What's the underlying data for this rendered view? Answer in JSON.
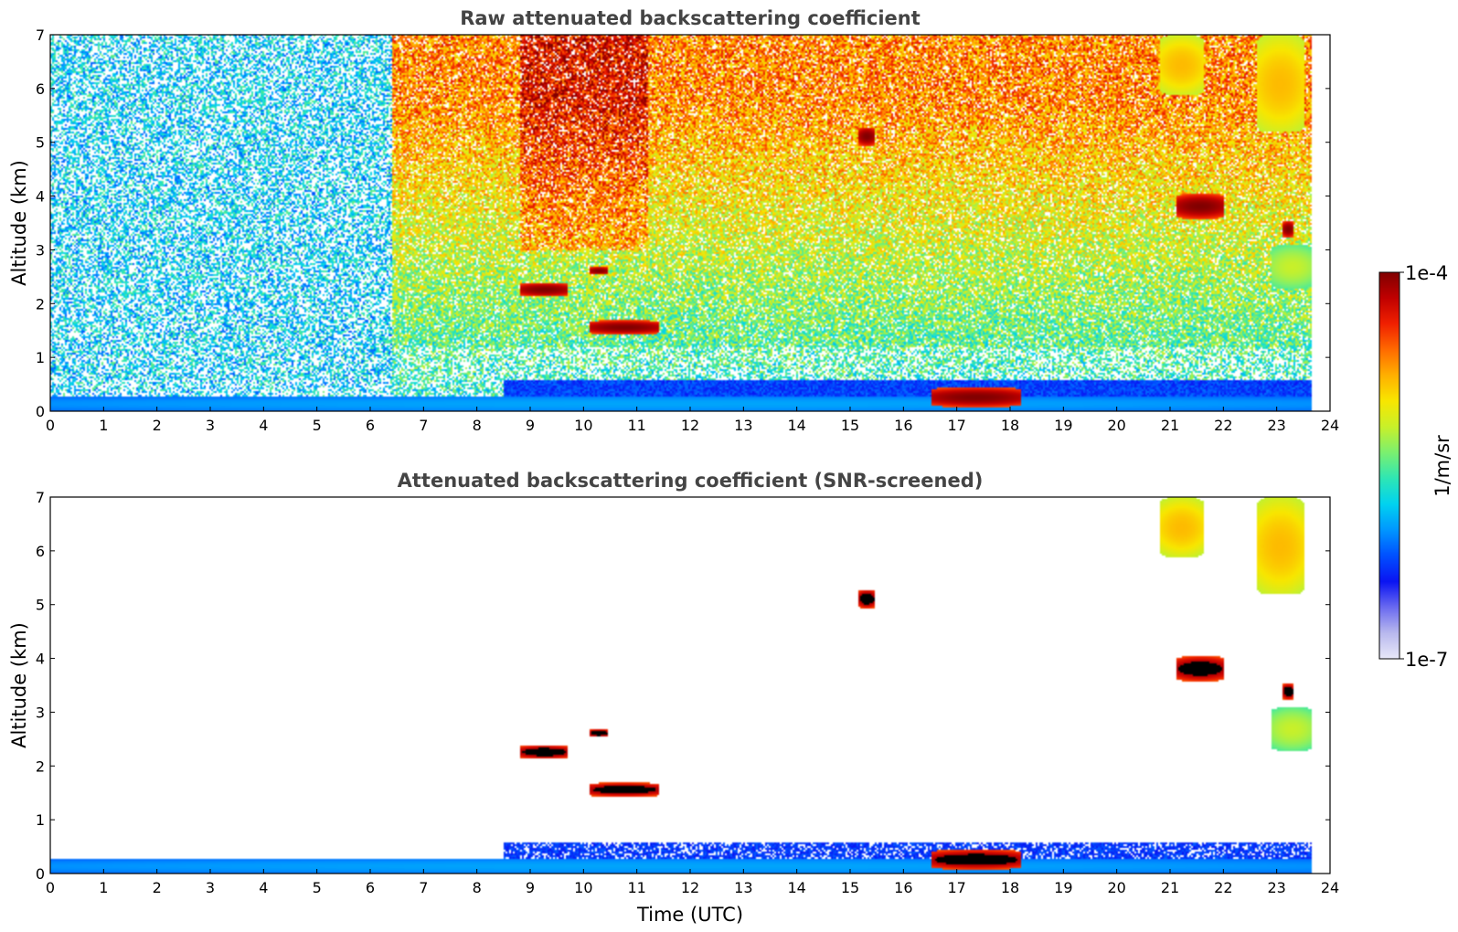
{
  "chart_data": [
    {
      "type": "heatmap",
      "title": "Raw attenuated backscattering coefficient",
      "xlabel": "",
      "ylabel": "Altitude (km)",
      "xlim": [
        0,
        24
      ],
      "ylim": [
        0,
        7
      ],
      "xticks": [
        0,
        1,
        2,
        3,
        4,
        5,
        6,
        7,
        8,
        9,
        10,
        11,
        12,
        13,
        14,
        15,
        16,
        17,
        18,
        19,
        20,
        21,
        22,
        23,
        24
      ],
      "yticks": [
        0,
        1,
        2,
        3,
        4,
        5,
        6,
        7
      ],
      "data_end_time": 23.65,
      "features": [
        {
          "name": "surface aerosol layer",
          "t0": 0.0,
          "t1": 23.65,
          "z0": 0.0,
          "z1": 0.3,
          "intensity": 0.35
        },
        {
          "name": "cloud 1",
          "t0": 8.8,
          "t1": 9.7,
          "z0": 2.15,
          "z1": 2.4,
          "intensity": 1.0
        },
        {
          "name": "cloud 2",
          "t0": 10.1,
          "t1": 10.45,
          "z0": 2.55,
          "z1": 2.7,
          "intensity": 1.0
        },
        {
          "name": "cloud 3",
          "t0": 10.1,
          "t1": 11.4,
          "z0": 1.45,
          "z1": 1.7,
          "intensity": 1.0
        },
        {
          "name": "cloud 4",
          "t0": 15.15,
          "t1": 15.45,
          "z0": 4.95,
          "z1": 5.3,
          "intensity": 1.0
        },
        {
          "name": "cloud 5",
          "t0": 21.1,
          "t1": 22.0,
          "z0": 3.6,
          "z1": 4.05,
          "intensity": 1.0
        },
        {
          "name": "cloud 6",
          "t0": 23.1,
          "t1": 23.3,
          "z0": 3.25,
          "z1": 3.55,
          "intensity": 1.0
        },
        {
          "name": "cirrus 1",
          "t0": 20.8,
          "t1": 21.6,
          "z0": 5.9,
          "z1": 7.0,
          "intensity": 0.72
        },
        {
          "name": "cirrus 2",
          "t0": 22.6,
          "t1": 23.5,
          "z0": 5.2,
          "z1": 7.0,
          "intensity": 0.72
        },
        {
          "name": "aerosol 3 km",
          "t0": 22.9,
          "t1": 23.65,
          "z0": 2.3,
          "z1": 3.1,
          "intensity": 0.6
        },
        {
          "name": "boundary layer top cloud",
          "t0": 16.5,
          "t1": 18.2,
          "z0": 0.1,
          "z1": 0.45,
          "intensity": 1.0
        }
      ]
    },
    {
      "type": "heatmap",
      "title": "Attenuated backscattering coefficient (SNR-screened)",
      "xlabel": "Time (UTC)",
      "ylabel": "Altitude (km)",
      "xlim": [
        0,
        24
      ],
      "ylim": [
        0,
        7
      ],
      "xticks": [
        0,
        1,
        2,
        3,
        4,
        5,
        6,
        7,
        8,
        9,
        10,
        11,
        12,
        13,
        14,
        15,
        16,
        17,
        18,
        19,
        20,
        21,
        22,
        23,
        24
      ],
      "yticks": [
        0,
        1,
        2,
        3,
        4,
        5,
        6,
        7
      ],
      "data_end_time": 23.65
    }
  ],
  "colorbar": {
    "label": "1/m/sr",
    "max_label": "1e-4",
    "min_label": "1e-7",
    "scale": "log",
    "range": [
      1e-07,
      0.0001
    ],
    "colormap": [
      "#e8e8f8",
      "#b8b8ee",
      "#6a6af0",
      "#0a14f2",
      "#0050ff",
      "#0096ff",
      "#00d2f0",
      "#2ee6b4",
      "#7af070",
      "#c8f02a",
      "#f8e600",
      "#ffb000",
      "#ff6a00",
      "#f02000",
      "#c00000",
      "#800000"
    ]
  }
}
